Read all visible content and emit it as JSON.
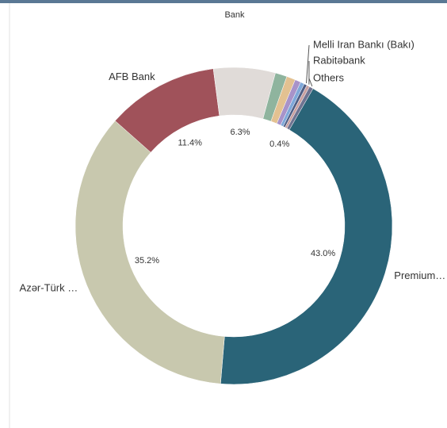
{
  "chart_data": {
    "type": "donut",
    "title": "Bank",
    "categories": [
      "Premium…",
      "Azər-Türk …",
      "AFB Bank",
      null,
      null,
      null,
      null,
      null,
      "Melli Iran Bankı (Bakı)",
      "Rabitəbank",
      "Others"
    ],
    "values": [
      43.0,
      35.2,
      11.4,
      6.3,
      1.2,
      0.9,
      0.6,
      0.4,
      0.3,
      0.3,
      0.4
    ],
    "value_labels": [
      "43.0%",
      "35.2%",
      "11.4%",
      "6.3%",
      null,
      null,
      null,
      null,
      null,
      null,
      "0.4%"
    ],
    "colors": [
      "#2a6478",
      "#c8c8ae",
      "#a0525a",
      "#e0dbd8",
      "#8fb49e",
      "#e3c191",
      "#a893c9",
      "#7fa8d9",
      "#4f5f86",
      "#c9a0a0",
      "#6f7391"
    ]
  }
}
